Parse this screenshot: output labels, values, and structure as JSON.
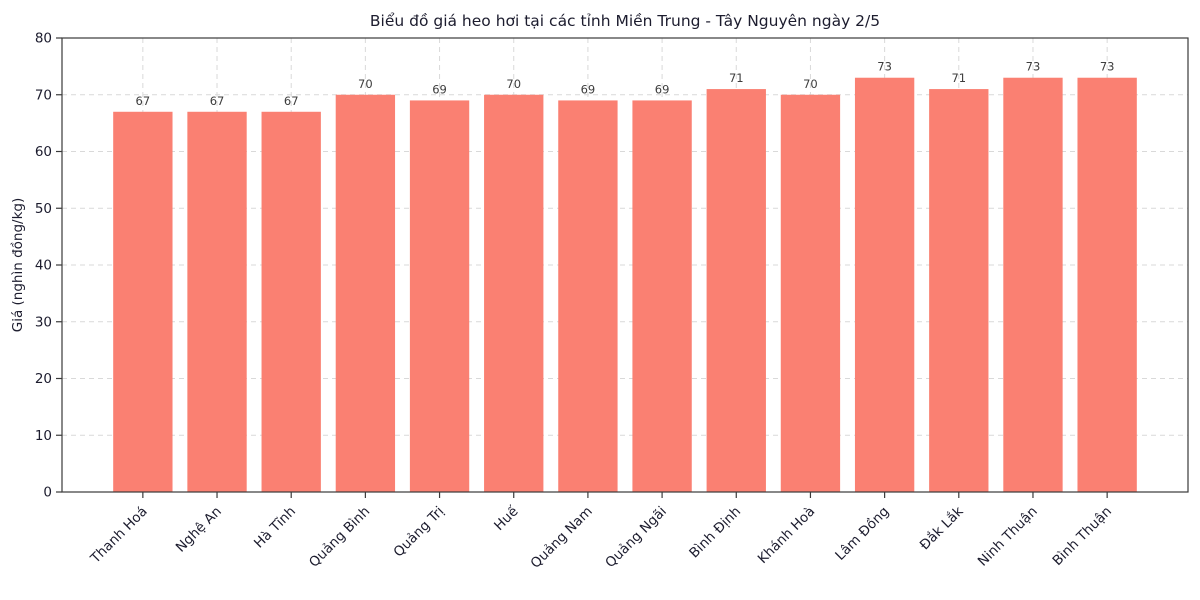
{
  "chart_data": {
    "type": "bar",
    "title": "Biểu đồ giá heo hơi tại các tỉnh Miền Trung - Tây Nguyên ngày 2/5",
    "categories": [
      "Thanh Hoá",
      "Nghệ An",
      "Hà Tĩnh",
      "Quảng Bình",
      "Quảng Trị",
      "Huế",
      "Quảng Nam",
      "Quảng Ngãi",
      "Bình Định",
      "Khánh Hoà",
      "Lâm Đồng",
      "Đắk Lắk",
      "Ninh Thuận",
      "Bình Thuận"
    ],
    "values": [
      67,
      67,
      67,
      70,
      69,
      70,
      69,
      69,
      71,
      70,
      73,
      71,
      73,
      73
    ],
    "xlabel": "",
    "ylabel": "Giá (nghìn đồng/kg)",
    "ylim": [
      0,
      80
    ],
    "yticks": [
      0,
      10,
      20,
      30,
      40,
      50,
      60,
      70,
      80
    ],
    "legend": null,
    "grid": true,
    "bar_labels_shown": true,
    "colors": {
      "bar": "#FA8072",
      "grid": "#d9d9d9",
      "spine": "#3a3a3a",
      "title_text": "#1c1c2e",
      "tick_text": "#1c1c2e",
      "value_label_text": "#3d3d3d",
      "background": "#ffffff"
    }
  }
}
